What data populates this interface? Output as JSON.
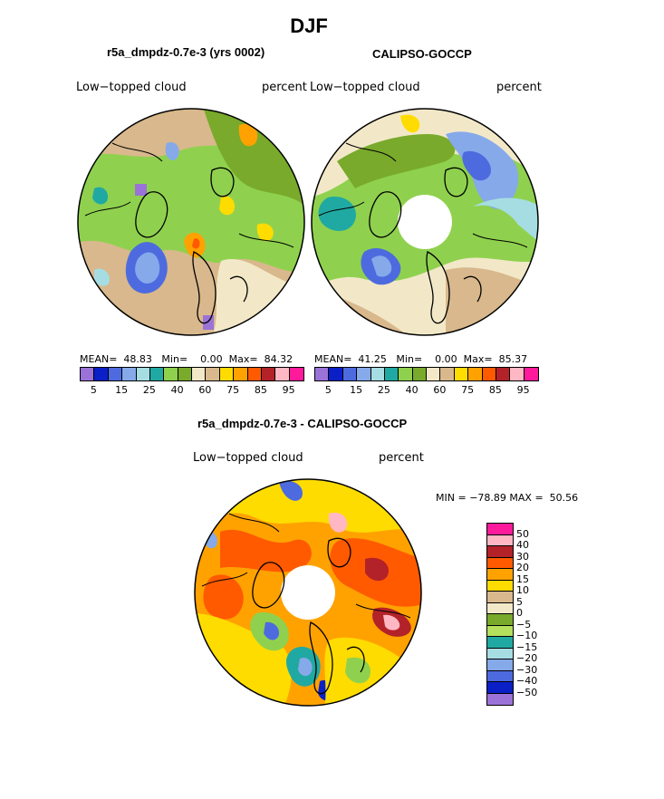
{
  "figure": {
    "title": "DJF"
  },
  "panel_left": {
    "title": "r5a_dmpdz-0.7e-3 (yrs 0002)",
    "left_label": "Low−topped cloud",
    "right_label": "percent",
    "mean_label": "MEAN=",
    "mean": "48.83",
    "min_label": "Min=",
    "min": "0.00",
    "max_label": "Max=",
    "max": "84.32"
  },
  "panel_right": {
    "title": "CALIPSO-GOCCP",
    "left_label": "Low−topped cloud",
    "right_label": "percent",
    "mean_label": "MEAN=",
    "mean": "41.25",
    "min_label": "Min=",
    "min": "0.00",
    "max_label": "Max=",
    "max": "85.37"
  },
  "panel_diff": {
    "title": "r5a_dmpdz-0.7e-3 - CALIPSO-GOCCP",
    "left_label": "Low−topped cloud",
    "right_label": "percent",
    "min_label": "MIN =",
    "min": "−78.89",
    "max_label": "MAX =",
    "max": "50.56"
  },
  "colorbar_abs": {
    "colors": [
      "#9b72d8",
      "#0b1fc7",
      "#4d6bdf",
      "#86a9ea",
      "#a6dde2",
      "#20a9a2",
      "#8fd14e",
      "#79aa2b",
      "#f2e8c8",
      "#d8b88c",
      "#ffdc00",
      "#ffa200",
      "#ff5a00",
      "#b32228",
      "#ffb7c4",
      "#ff1a9c"
    ],
    "tick_labels": [
      "5",
      "15",
      "25",
      "40",
      "60",
      "75",
      "85",
      "95"
    ]
  },
  "colorbar_diff": {
    "colors": [
      "#ff1a9c",
      "#ffb7c4",
      "#b32228",
      "#ff5a00",
      "#ffa200",
      "#ffdc00",
      "#d8b88c",
      "#f2e8c8",
      "#79aa2b",
      "#b4e05e",
      "#20a9a2",
      "#a6dde2",
      "#86a9ea",
      "#4d6bdf",
      "#0b1fc7",
      "#9b72d8"
    ],
    "tick_labels": [
      "50",
      "40",
      "30",
      "20",
      "15",
      "10",
      "5",
      "0",
      "−5",
      "−10",
      "−15",
      "−20",
      "−30",
      "−40",
      "−50"
    ]
  }
}
